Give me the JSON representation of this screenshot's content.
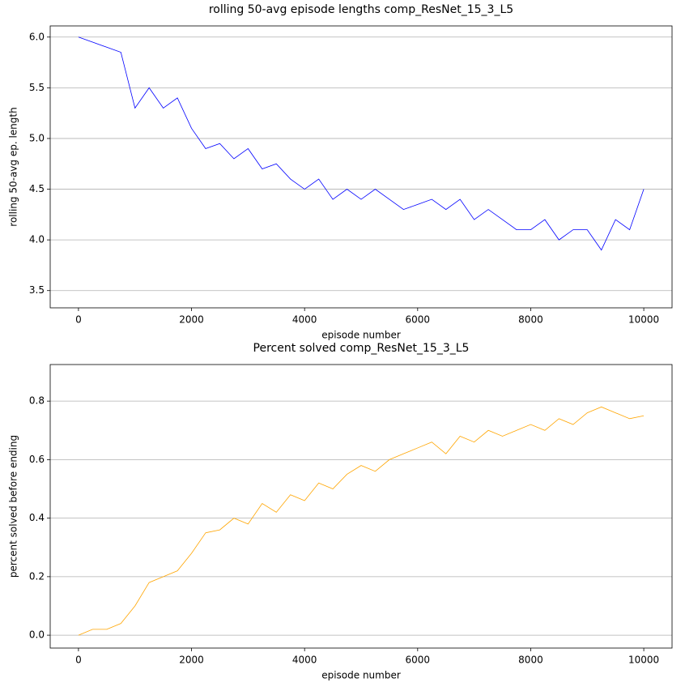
{
  "chart_data": [
    {
      "type": "line",
      "title": "rolling 50-avg episode lengths comp_ResNet_15_3_L5",
      "xlabel": "episode number",
      "ylabel": "rolling 50-avg ep. length",
      "x": [
        0,
        250,
        500,
        750,
        1000,
        1250,
        1500,
        1750,
        2000,
        2250,
        2500,
        2750,
        3000,
        3250,
        3500,
        3750,
        4000,
        4250,
        4500,
        4750,
        5000,
        5250,
        5500,
        5750,
        6000,
        6250,
        6500,
        6750,
        7000,
        7250,
        7500,
        7750,
        8000,
        8250,
        8500,
        8750,
        9000,
        9250,
        9500,
        9750,
        10000
      ],
      "values": [
        6.0,
        5.95,
        5.9,
        5.85,
        5.3,
        5.5,
        5.3,
        5.4,
        5.1,
        4.9,
        4.95,
        4.8,
        4.9,
        4.7,
        4.75,
        4.6,
        4.5,
        4.6,
        4.4,
        4.5,
        4.4,
        4.5,
        4.4,
        4.3,
        4.35,
        4.4,
        4.3,
        4.4,
        4.2,
        4.3,
        4.2,
        4.1,
        4.1,
        4.2,
        4.0,
        4.1,
        4.1,
        3.9,
        4.2,
        4.1,
        4.5
      ],
      "color": "#0000ff",
      "xlim": [
        -500,
        10500
      ],
      "ylim": [
        3.33,
        6.11
      ],
      "xticks": [
        0,
        2000,
        4000,
        6000,
        8000,
        10000
      ],
      "yticks": [
        3.5,
        {
          "value": 4,
          "label": "4.0"
        },
        4.5,
        {
          "value": 5,
          "label": "5.0"
        },
        5.5,
        {
          "value": 6,
          "label": "6.0"
        }
      ],
      "grid": "y"
    },
    {
      "type": "line",
      "title": "Percent solved comp_ResNet_15_3_L5",
      "xlabel": "episode number",
      "ylabel": "percent solved before ending",
      "x": [
        0,
        250,
        500,
        750,
        1000,
        1250,
        1500,
        1750,
        2000,
        2250,
        2500,
        2750,
        3000,
        3250,
        3500,
        3750,
        4000,
        4250,
        4500,
        4750,
        5000,
        5250,
        5500,
        5750,
        6000,
        6250,
        6500,
        6750,
        7000,
        7250,
        7500,
        7750,
        8000,
        8250,
        8500,
        8750,
        9000,
        9250,
        9500,
        9750,
        10000
      ],
      "values": [
        0.0,
        0.02,
        0.02,
        0.04,
        0.1,
        0.18,
        0.2,
        0.22,
        0.28,
        0.35,
        0.36,
        0.4,
        0.38,
        0.45,
        0.42,
        0.48,
        0.46,
        0.52,
        0.5,
        0.55,
        0.58,
        0.56,
        0.6,
        0.62,
        0.64,
        0.66,
        0.62,
        0.68,
        0.66,
        0.7,
        0.68,
        0.7,
        0.72,
        0.7,
        0.74,
        0.72,
        0.76,
        0.78,
        0.76,
        0.74,
        0.75
      ],
      "color": "#ffa500",
      "xlim": [
        -500,
        10500
      ],
      "ylim": [
        -0.044,
        0.925
      ],
      "xticks": [
        0,
        2000,
        4000,
        6000,
        8000,
        10000
      ],
      "yticks": [
        {
          "value": 0,
          "label": "0.0"
        },
        0.2,
        0.4,
        0.6,
        0.8
      ],
      "grid": "y"
    }
  ]
}
